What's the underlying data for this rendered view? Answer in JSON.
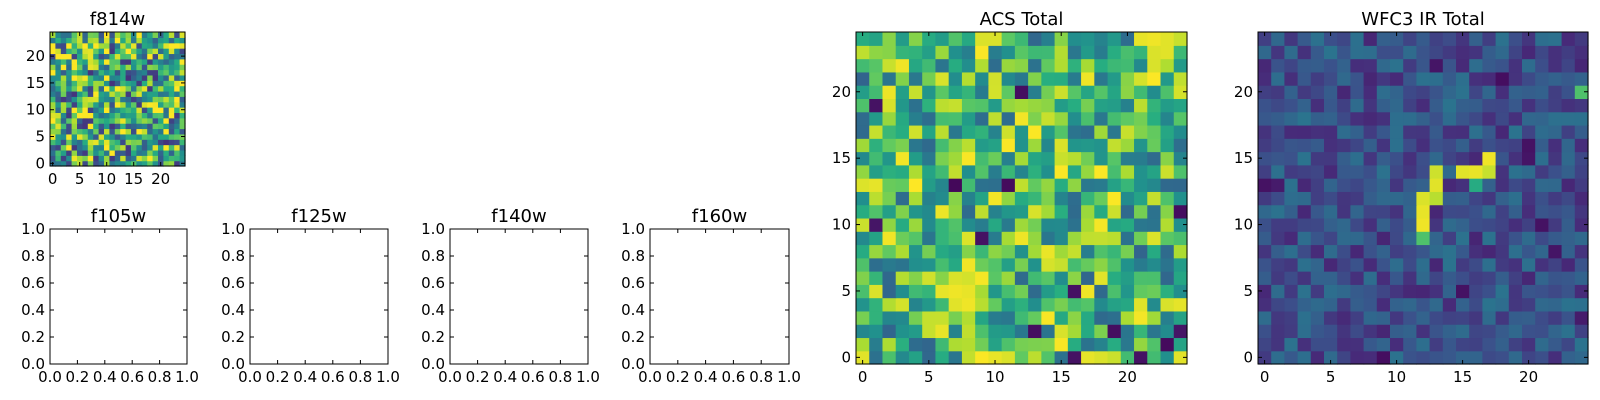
{
  "chart_data": [
    {
      "id": "f814w",
      "type": "heatmap",
      "title": "f814w",
      "xlim": [
        -0.5,
        24.5
      ],
      "ylim": [
        -0.5,
        24.5
      ],
      "xticks": [
        0,
        5,
        10,
        15,
        20
      ],
      "yticks": [
        0,
        5,
        10,
        15,
        20
      ],
      "xticklabels": [
        "0",
        "5",
        "10",
        "15",
        "20"
      ],
      "yticklabels": [
        "0",
        "5",
        "10",
        "15",
        "20"
      ],
      "colormap": "viridis",
      "grid_size": 25,
      "seed": 11,
      "mean": 0.6,
      "spread": 0.45,
      "hotspots": [
        {
          "x": 8,
          "y": 4,
          "value": 0.97
        },
        {
          "x": 9,
          "y": 5,
          "value": 0.95
        },
        {
          "x": 7,
          "y": 4,
          "value": 0.93
        },
        {
          "x": 24,
          "y": 24,
          "value": 0.95
        }
      ]
    },
    {
      "id": "f105w",
      "type": "empty",
      "title": "f105w",
      "xlim": [
        0,
        1
      ],
      "ylim": [
        0,
        1
      ],
      "xticks": [
        0,
        0.2,
        0.4,
        0.6,
        0.8,
        1.0
      ],
      "yticks": [
        0,
        0.2,
        0.4,
        0.6,
        0.8,
        1.0
      ],
      "xticklabels": [
        "0.0",
        "0.2",
        "0.4",
        "0.6",
        "0.8",
        "1.0"
      ],
      "yticklabels": [
        "0.0",
        "0.2",
        "0.4",
        "0.6",
        "0.8",
        "1.0"
      ]
    },
    {
      "id": "f125w",
      "type": "empty",
      "title": "f125w",
      "xlim": [
        0,
        1
      ],
      "ylim": [
        0,
        1
      ],
      "xticks": [
        0,
        0.2,
        0.4,
        0.6,
        0.8,
        1.0
      ],
      "yticks": [
        0,
        0.2,
        0.4,
        0.6,
        0.8,
        1.0
      ],
      "xticklabels": [
        "0.0",
        "0.2",
        "0.4",
        "0.6",
        "0.8",
        "1.0"
      ],
      "yticklabels": [
        "0.0",
        "0.2",
        "0.4",
        "0.6",
        "0.8",
        "1.0"
      ]
    },
    {
      "id": "f140w",
      "type": "empty",
      "title": "f140w",
      "xlim": [
        0,
        1
      ],
      "ylim": [
        0,
        1
      ],
      "xticks": [
        0,
        0.2,
        0.4,
        0.6,
        0.8,
        1.0
      ],
      "yticks": [
        0,
        0.2,
        0.4,
        0.6,
        0.8,
        1.0
      ],
      "xticklabels": [
        "0.0",
        "0.2",
        "0.4",
        "0.6",
        "0.8",
        "1.0"
      ],
      "yticklabels": [
        "0.0",
        "0.2",
        "0.4",
        "0.6",
        "0.8",
        "1.0"
      ]
    },
    {
      "id": "f160w",
      "type": "empty",
      "title": "f160w",
      "xlim": [
        0,
        1
      ],
      "ylim": [
        0,
        1
      ],
      "xticks": [
        0,
        0.2,
        0.4,
        0.6,
        0.8,
        1.0
      ],
      "yticks": [
        0,
        0.2,
        0.4,
        0.6,
        0.8,
        1.0
      ],
      "xticklabels": [
        "0.0",
        "0.2",
        "0.4",
        "0.6",
        "0.8",
        "1.0"
      ],
      "yticklabels": [
        "0.0",
        "0.2",
        "0.4",
        "0.6",
        "0.8",
        "1.0"
      ]
    },
    {
      "id": "acs_total",
      "type": "heatmap",
      "title": "ACS Total",
      "xlim": [
        -0.5,
        24.5
      ],
      "ylim": [
        -0.5,
        24.5
      ],
      "xticks": [
        0,
        5,
        10,
        15,
        20
      ],
      "yticks": [
        0,
        5,
        10,
        15,
        20
      ],
      "xticklabels": [
        "0",
        "5",
        "10",
        "15",
        "20"
      ],
      "yticklabels": [
        "0",
        "5",
        "10",
        "15",
        "20"
      ],
      "colormap": "viridis",
      "grid_size": 25,
      "seed": 42,
      "mean": 0.66,
      "spread": 0.34,
      "hotspots": [
        {
          "x": 7,
          "y": 5,
          "value": 0.98
        },
        {
          "x": 8,
          "y": 5,
          "value": 0.97
        },
        {
          "x": 7,
          "y": 4,
          "value": 0.96
        },
        {
          "x": 8,
          "y": 4,
          "value": 0.98
        },
        {
          "x": 7,
          "y": 6,
          "value": 0.95
        },
        {
          "x": 8,
          "y": 6,
          "value": 0.94
        },
        {
          "x": 9,
          "y": 4,
          "value": 0.9
        },
        {
          "x": 6,
          "y": 3,
          "value": 0.92
        },
        {
          "x": 10,
          "y": 0,
          "value": 0.97
        },
        {
          "x": 11,
          "y": 0,
          "value": 0.95
        },
        {
          "x": 0,
          "y": 0,
          "value": 0.96
        },
        {
          "x": 21,
          "y": 24,
          "value": 0.97
        },
        {
          "x": 22,
          "y": 24,
          "value": 0.98
        },
        {
          "x": 23,
          "y": 24,
          "value": 0.96
        },
        {
          "x": 22,
          "y": 23,
          "value": 0.95
        },
        {
          "x": 23,
          "y": 23,
          "value": 0.96
        },
        {
          "x": 9,
          "y": 24,
          "value": 0.95
        },
        {
          "x": 4,
          "y": 20,
          "value": 0.92
        },
        {
          "x": 10,
          "y": 20,
          "value": 0.94
        },
        {
          "x": 7,
          "y": 13,
          "value": 0.02
        },
        {
          "x": 11,
          "y": 13,
          "value": 0.03
        },
        {
          "x": 1,
          "y": 19,
          "value": 0.05
        },
        {
          "x": 12,
          "y": 20,
          "value": 0.04
        },
        {
          "x": 9,
          "y": 9,
          "value": 0.05
        },
        {
          "x": 1,
          "y": 10,
          "value": 0.06
        },
        {
          "x": 13,
          "y": 2,
          "value": 0.04
        },
        {
          "x": 16,
          "y": 0,
          "value": 0.05
        },
        {
          "x": 19,
          "y": 2,
          "value": 0.04
        },
        {
          "x": 23,
          "y": 1,
          "value": 0.03
        },
        {
          "x": 24,
          "y": 11,
          "value": 0.04
        },
        {
          "x": 16,
          "y": 5,
          "value": 0.05
        },
        {
          "x": 21,
          "y": 0,
          "value": 0.05
        },
        {
          "x": 24,
          "y": 2,
          "value": 0.06
        }
      ]
    },
    {
      "id": "wfc3_ir_total",
      "type": "heatmap",
      "title": "WFC3 IR Total",
      "xlim": [
        -0.5,
        24.5
      ],
      "ylim": [
        -0.5,
        24.5
      ],
      "xticks": [
        0,
        5,
        10,
        15,
        20
      ],
      "yticks": [
        0,
        5,
        10,
        15,
        20
      ],
      "xticklabels": [
        "0",
        "5",
        "10",
        "15",
        "20"
      ],
      "yticklabels": [
        "0",
        "5",
        "10",
        "15",
        "20"
      ],
      "colormap": "viridis",
      "grid_size": 25,
      "seed": 7,
      "mean": 0.25,
      "spread": 0.14,
      "hotspots": [
        {
          "x": 12,
          "y": 10,
          "value": 0.98
        },
        {
          "x": 12,
          "y": 11,
          "value": 0.97
        },
        {
          "x": 12,
          "y": 12,
          "value": 0.95
        },
        {
          "x": 13,
          "y": 12,
          "value": 0.9
        },
        {
          "x": 13,
          "y": 13,
          "value": 0.96
        },
        {
          "x": 13,
          "y": 14,
          "value": 0.93
        },
        {
          "x": 12,
          "y": 9,
          "value": 0.72
        },
        {
          "x": 15,
          "y": 14,
          "value": 0.96
        },
        {
          "x": 16,
          "y": 14,
          "value": 0.97
        },
        {
          "x": 17,
          "y": 14,
          "value": 0.92
        },
        {
          "x": 17,
          "y": 15,
          "value": 0.98
        },
        {
          "x": 16,
          "y": 13,
          "value": 0.62
        },
        {
          "x": 24,
          "y": 20,
          "value": 0.72
        },
        {
          "x": 0,
          "y": 13,
          "value": 0.05
        },
        {
          "x": 1,
          "y": 13,
          "value": 0.08
        },
        {
          "x": 20,
          "y": 16,
          "value": 0.05
        },
        {
          "x": 20,
          "y": 15,
          "value": 0.06
        },
        {
          "x": 18,
          "y": 21,
          "value": 0.04
        },
        {
          "x": 13,
          "y": 22,
          "value": 0.06
        },
        {
          "x": 21,
          "y": 10,
          "value": 0.05
        },
        {
          "x": 22,
          "y": 8,
          "value": 0.06
        },
        {
          "x": 15,
          "y": 5,
          "value": 0.05
        },
        {
          "x": 9,
          "y": 0,
          "value": 0.04
        },
        {
          "x": 24,
          "y": 3,
          "value": 0.08
        }
      ]
    }
  ]
}
